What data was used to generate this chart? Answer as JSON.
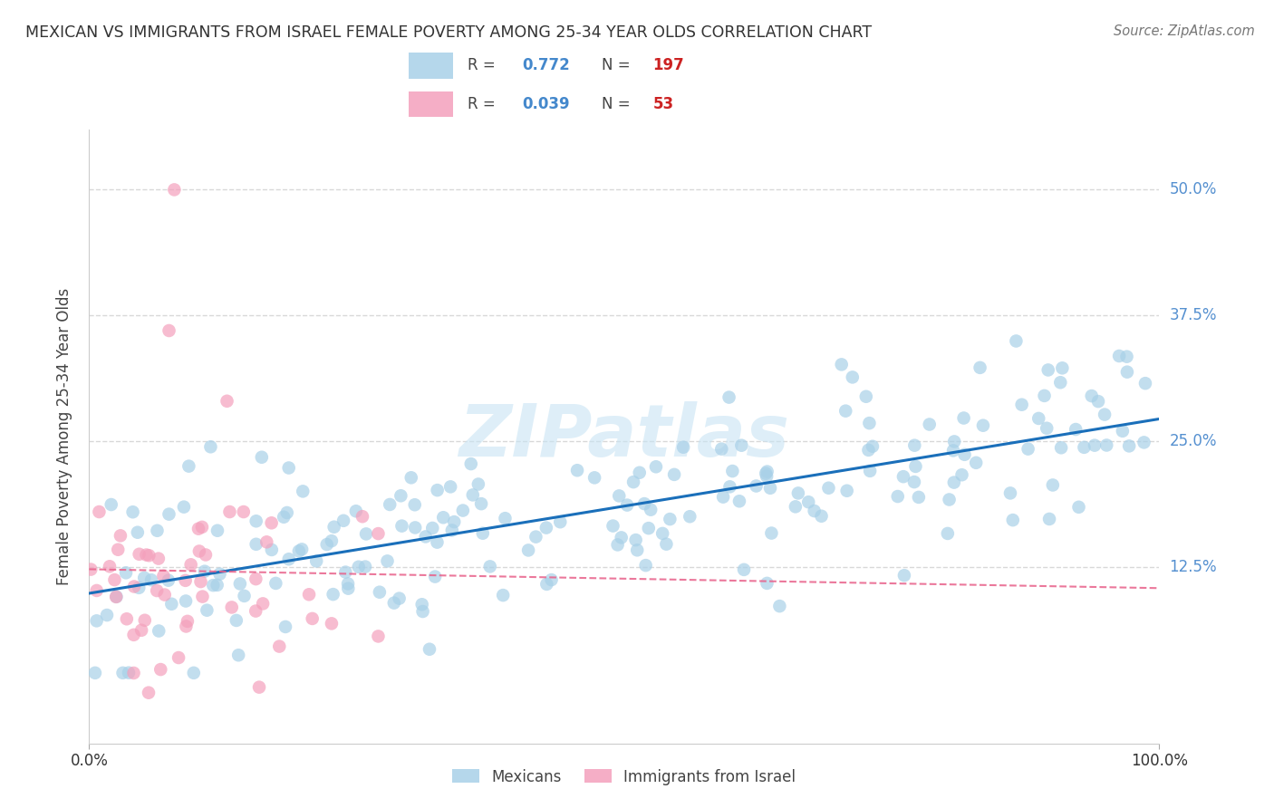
{
  "title": "MEXICAN VS IMMIGRANTS FROM ISRAEL FEMALE POVERTY AMONG 25-34 YEAR OLDS CORRELATION CHART",
  "source": "Source: ZipAtlas.com",
  "ylabel": "Female Poverty Among 25-34 Year Olds",
  "yticks": [
    "12.5%",
    "25.0%",
    "37.5%",
    "50.0%"
  ],
  "ytick_values": [
    0.125,
    0.25,
    0.375,
    0.5
  ],
  "xtick_left": "0.0%",
  "xtick_right": "100.0%",
  "xlim": [
    0.0,
    1.0
  ],
  "ylim": [
    -0.05,
    0.56
  ],
  "watermark": "ZIPatlas",
  "background_color": "#ffffff",
  "grid_color": "#d8d8d8",
  "blue_color": "#a8d0e8",
  "pink_color": "#f4a0bc",
  "blue_line_color": "#1a6fba",
  "pink_line_color": "#e8608a",
  "ytick_color": "#5590d0",
  "xtick_color": "#333333",
  "legend_R_color": "#4488cc",
  "legend_N_color": "#cc2222",
  "seed": 42,
  "n_blue": 197,
  "n_pink": 53
}
